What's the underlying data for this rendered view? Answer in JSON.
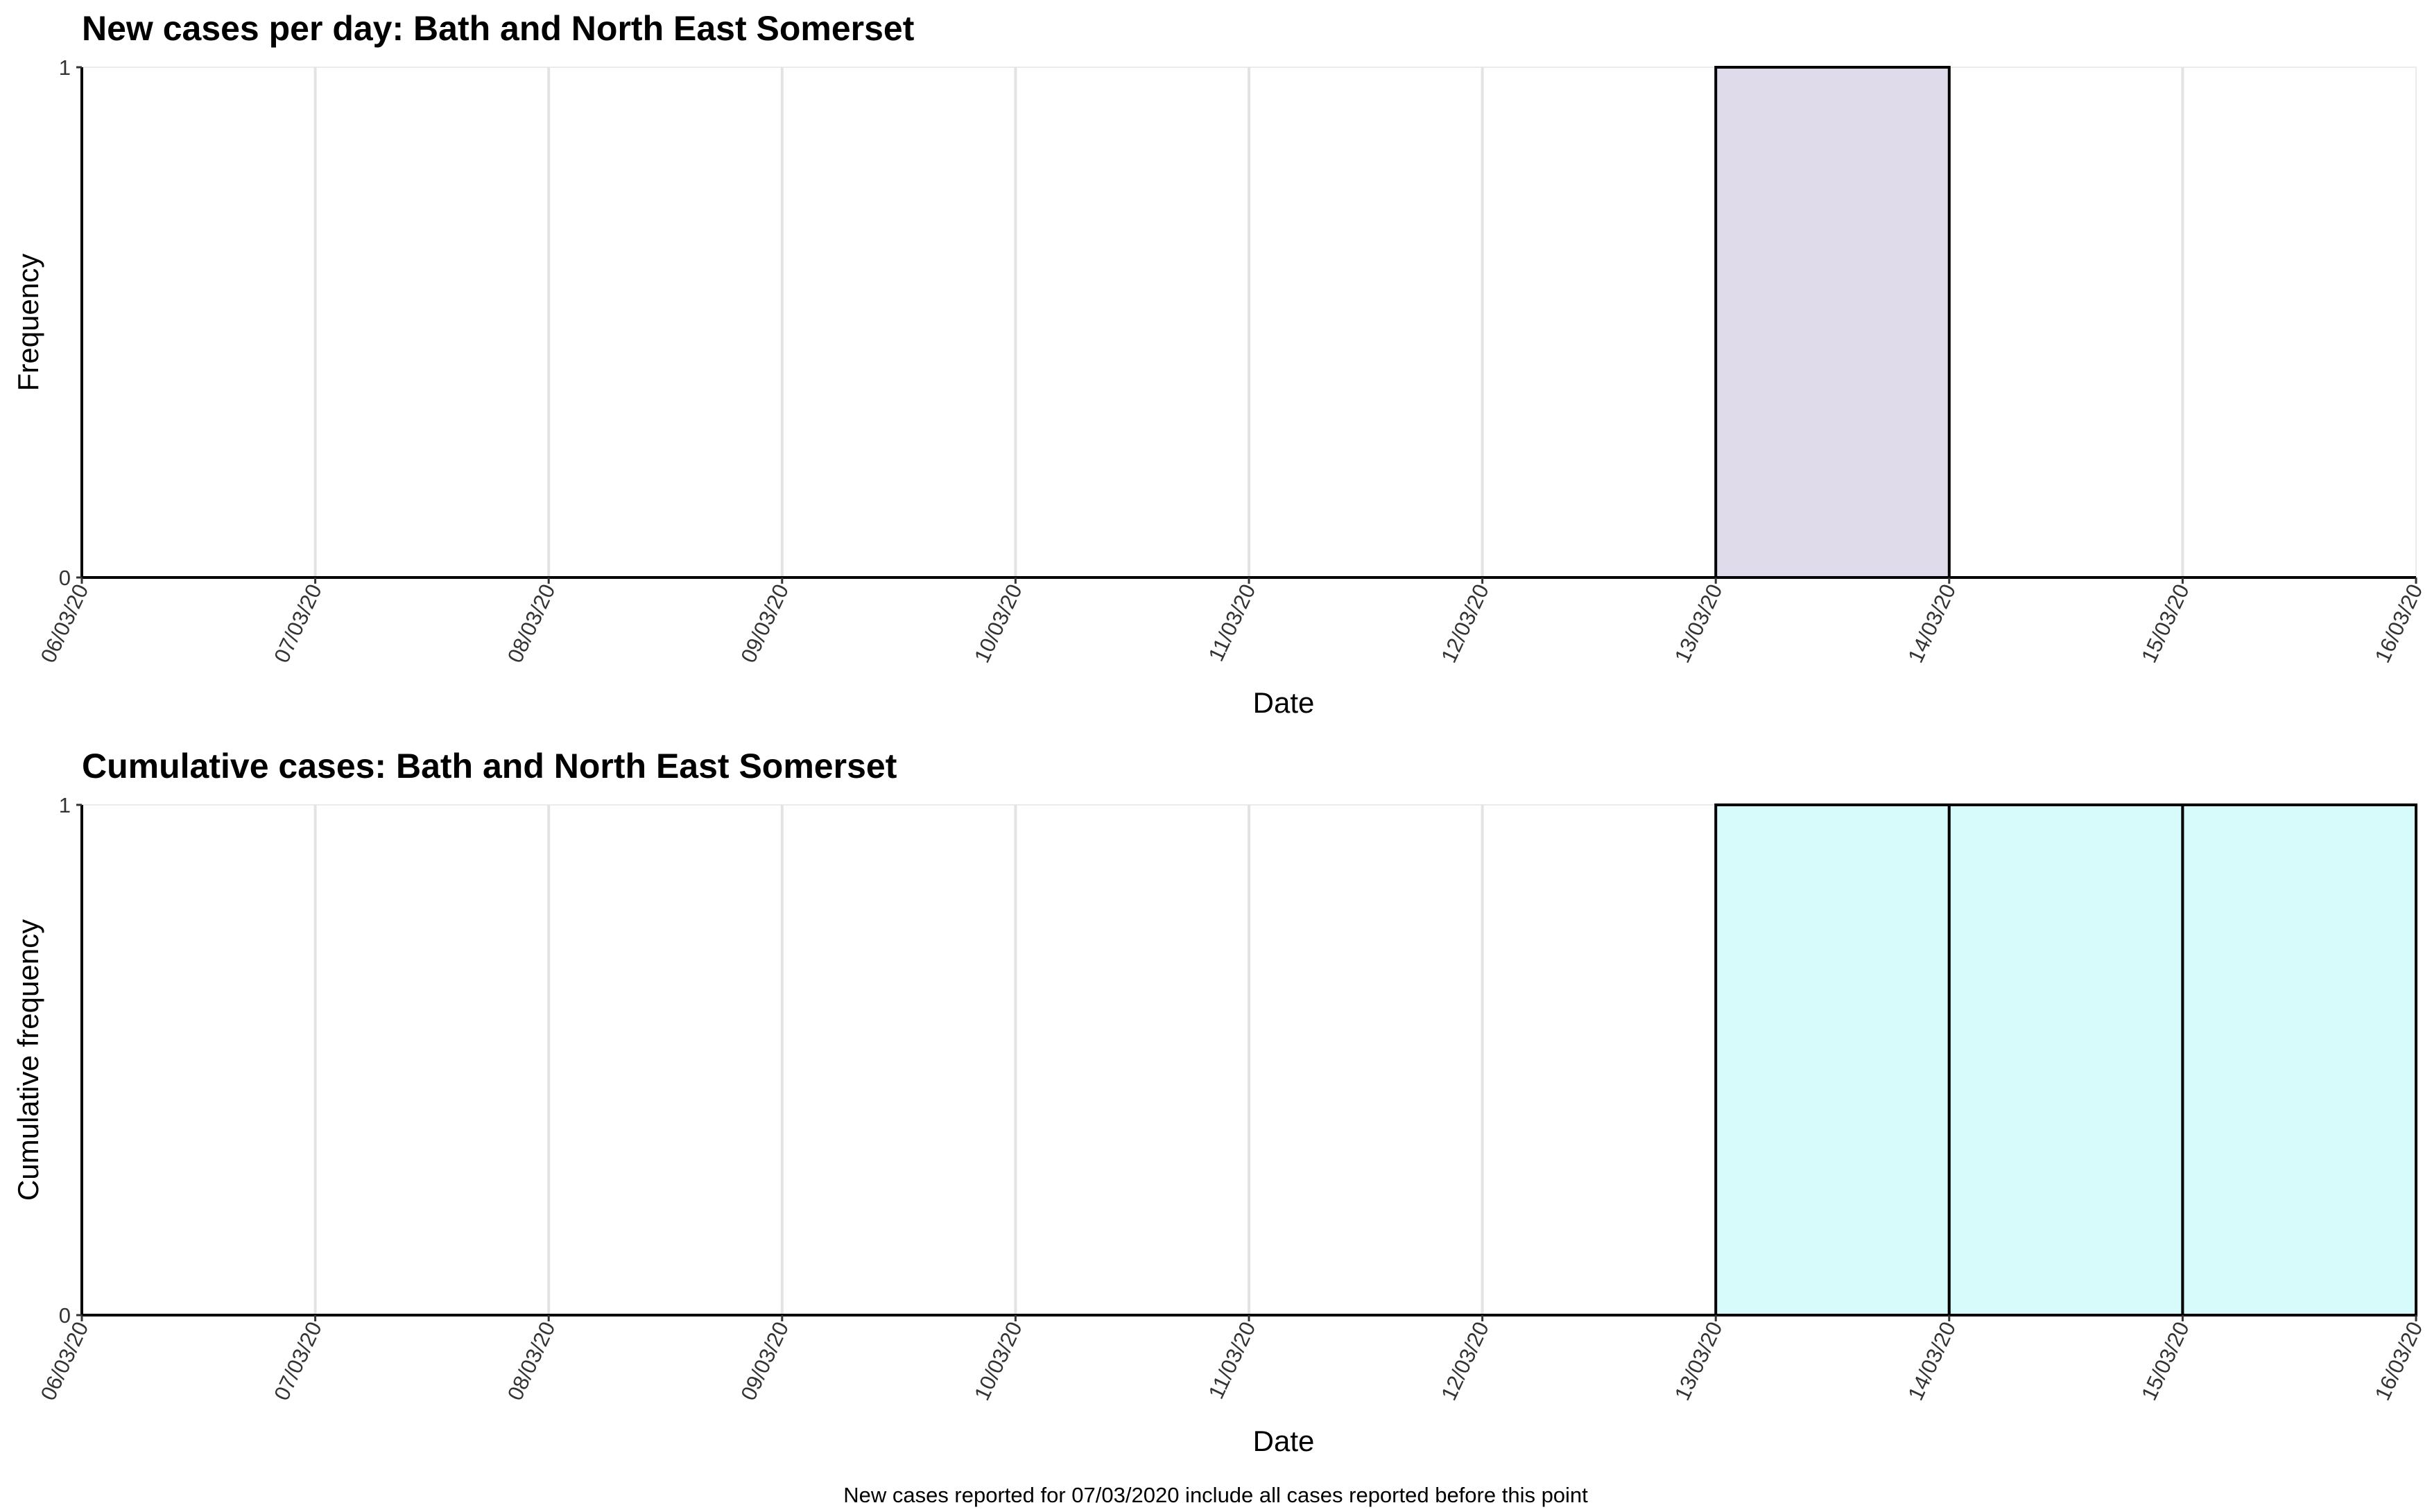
{
  "footnote": "New cases reported for 07/03/2020 include all cases reported before this point",
  "chart_data": [
    {
      "type": "bar",
      "title": "New cases per day: Bath and North East Somerset",
      "xlabel": "Date",
      "ylabel": "Frequency",
      "x_ticks": [
        "06/03/20",
        "07/03/20",
        "08/03/20",
        "09/03/20",
        "10/03/20",
        "11/03/20",
        "12/03/20",
        "13/03/20",
        "14/03/20",
        "15/03/20",
        "16/03/20"
      ],
      "y_ticks": [
        "0",
        "1"
      ],
      "ylim": [
        0,
        1
      ],
      "grid": "vertical",
      "fill_color": "#e0dbea",
      "bars": [
        {
          "start": "13/03/20",
          "end": "14/03/20",
          "value": 1
        }
      ]
    },
    {
      "type": "bar",
      "title": "Cumulative cases: Bath and North East Somerset",
      "xlabel": "Date",
      "ylabel": "Cumulative frequency",
      "x_ticks": [
        "06/03/20",
        "07/03/20",
        "08/03/20",
        "09/03/20",
        "10/03/20",
        "11/03/20",
        "12/03/20",
        "13/03/20",
        "14/03/20",
        "15/03/20",
        "16/03/20"
      ],
      "y_ticks": [
        "0",
        "1"
      ],
      "ylim": [
        0,
        1
      ],
      "grid": "vertical",
      "fill_color": "#d7fbfb",
      "bars": [
        {
          "start": "13/03/20",
          "end": "14/03/20",
          "value": 1
        },
        {
          "start": "14/03/20",
          "end": "15/03/20",
          "value": 1
        },
        {
          "start": "15/03/20",
          "end": "16/03/20",
          "value": 1
        }
      ]
    }
  ]
}
